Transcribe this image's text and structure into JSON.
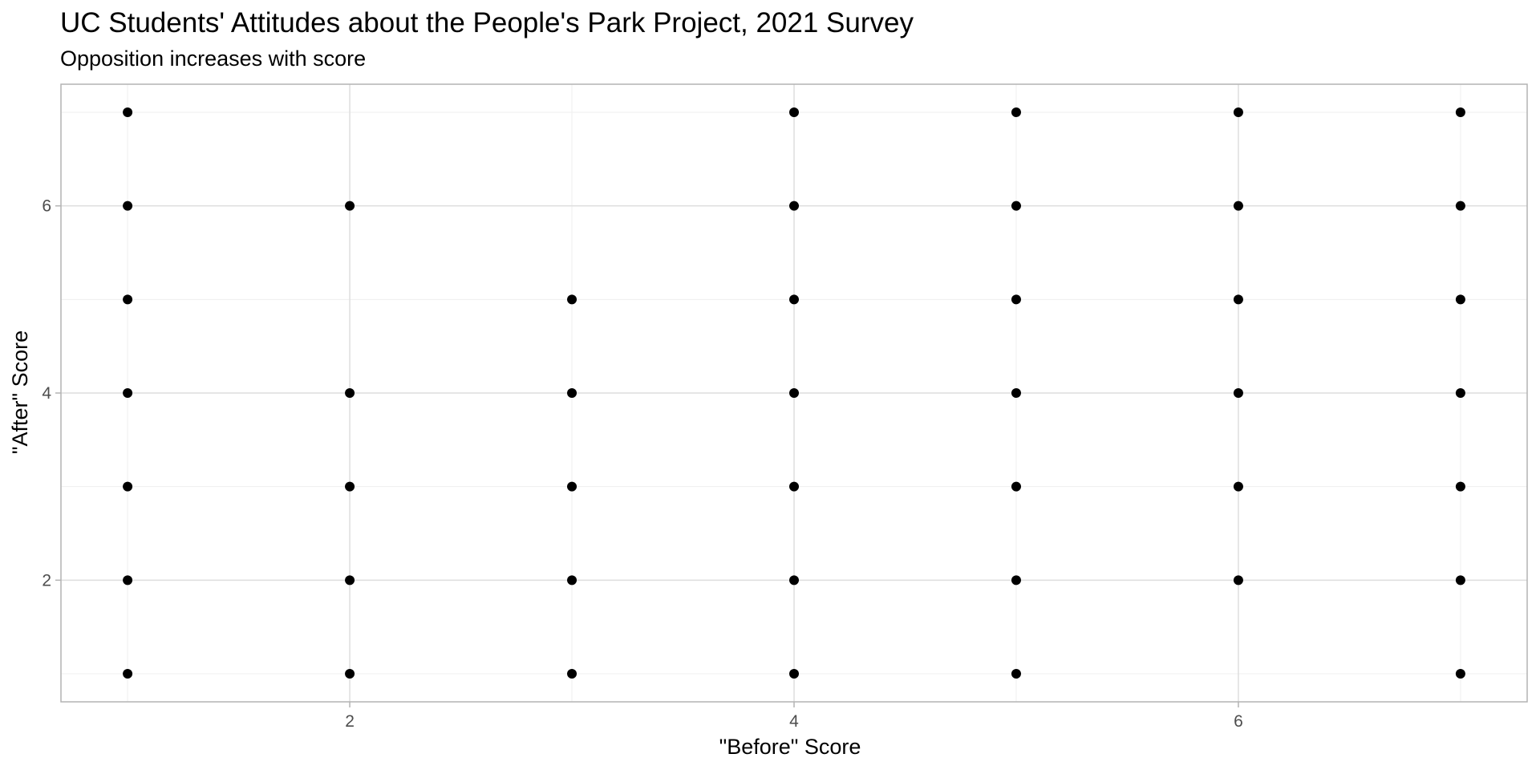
{
  "chart_data": {
    "type": "scatter",
    "title": "UC Students' Attitudes about the People's Park Project, 2021 Survey",
    "subtitle": "Opposition increases with score",
    "xlabel": "\"Before\" Score",
    "ylabel": "\"After\" Score",
    "xlim": [
      0.7,
      7.3
    ],
    "ylim": [
      0.7,
      7.3
    ],
    "x_ticks": [
      2,
      4,
      6
    ],
    "y_ticks": [
      2,
      4,
      6
    ],
    "grid": true,
    "legend": "none",
    "point_color": "#000000",
    "points": [
      {
        "x": 1,
        "y": 1
      },
      {
        "x": 1,
        "y": 2
      },
      {
        "x": 1,
        "y": 3
      },
      {
        "x": 1,
        "y": 4
      },
      {
        "x": 1,
        "y": 5
      },
      {
        "x": 1,
        "y": 6
      },
      {
        "x": 1,
        "y": 7
      },
      {
        "x": 2,
        "y": 1
      },
      {
        "x": 2,
        "y": 2
      },
      {
        "x": 2,
        "y": 3
      },
      {
        "x": 2,
        "y": 4
      },
      {
        "x": 2,
        "y": 6
      },
      {
        "x": 3,
        "y": 1
      },
      {
        "x": 3,
        "y": 2
      },
      {
        "x": 3,
        "y": 3
      },
      {
        "x": 3,
        "y": 4
      },
      {
        "x": 3,
        "y": 5
      },
      {
        "x": 4,
        "y": 1
      },
      {
        "x": 4,
        "y": 2
      },
      {
        "x": 4,
        "y": 3
      },
      {
        "x": 4,
        "y": 4
      },
      {
        "x": 4,
        "y": 5
      },
      {
        "x": 4,
        "y": 6
      },
      {
        "x": 4,
        "y": 7
      },
      {
        "x": 5,
        "y": 1
      },
      {
        "x": 5,
        "y": 2
      },
      {
        "x": 5,
        "y": 3
      },
      {
        "x": 5,
        "y": 4
      },
      {
        "x": 5,
        "y": 5
      },
      {
        "x": 5,
        "y": 6
      },
      {
        "x": 5,
        "y": 7
      },
      {
        "x": 6,
        "y": 2
      },
      {
        "x": 6,
        "y": 3
      },
      {
        "x": 6,
        "y": 4
      },
      {
        "x": 6,
        "y": 5
      },
      {
        "x": 6,
        "y": 6
      },
      {
        "x": 6,
        "y": 7
      },
      {
        "x": 7,
        "y": 1
      },
      {
        "x": 7,
        "y": 2
      },
      {
        "x": 7,
        "y": 3
      },
      {
        "x": 7,
        "y": 4
      },
      {
        "x": 7,
        "y": 5
      },
      {
        "x": 7,
        "y": 6
      },
      {
        "x": 7,
        "y": 7
      }
    ]
  }
}
